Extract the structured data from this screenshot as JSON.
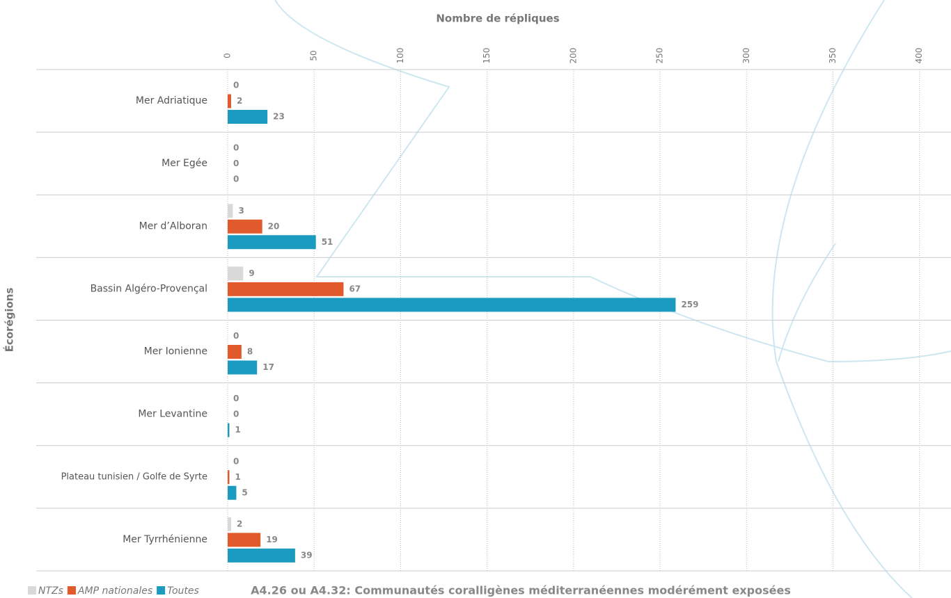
{
  "chart_data": {
    "type": "hbar",
    "x_label": "Nombre de répliques",
    "y_label": "Écorégions",
    "caption": "A4.26 ou A4.32: Communautés coralligènes méditerranéennes modérément exposées",
    "categories": [
      "Mer Adriatique",
      "Mer Egée",
      "Mer d’Alboran",
      "Bassin Algéro-Provençal",
      "Mer Ionienne",
      "Mer Levantine",
      "Plateau tunisien / Golfe de Syrte",
      "Mer Tyrrhénienne"
    ],
    "series": [
      {
        "name": "NTZs",
        "color": "#d9d9d9",
        "values": [
          0,
          0,
          3,
          9,
          0,
          0,
          0,
          2
        ]
      },
      {
        "name": "AMP nationales",
        "color": "#e05a2b",
        "values": [
          2,
          0,
          20,
          67,
          8,
          0,
          1,
          19
        ]
      },
      {
        "name": "Toutes",
        "color": "#1a9bbf",
        "values": [
          23,
          0,
          51,
          259,
          17,
          1,
          5,
          39
        ]
      }
    ],
    "xlim": [
      0,
      415
    ],
    "xticks": [
      0,
      50,
      100,
      150,
      200,
      250,
      300,
      350,
      400
    ],
    "grid": true,
    "legend": "bottom-left"
  }
}
